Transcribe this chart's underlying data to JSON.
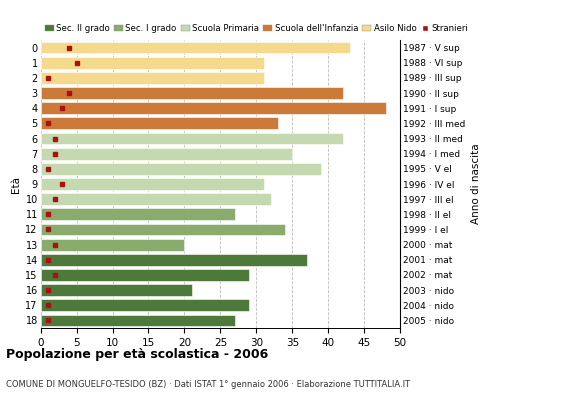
{
  "ages": [
    18,
    17,
    16,
    15,
    14,
    13,
    12,
    11,
    10,
    9,
    8,
    7,
    6,
    5,
    4,
    3,
    2,
    1,
    0
  ],
  "bar_values": [
    27,
    29,
    21,
    29,
    37,
    20,
    34,
    27,
    32,
    31,
    39,
    35,
    42,
    33,
    48,
    42,
    31,
    31,
    43
  ],
  "stranieri_values": [
    1,
    1,
    1,
    2,
    1,
    2,
    1,
    1,
    2,
    3,
    1,
    2,
    2,
    1,
    3,
    4,
    1,
    5,
    4
  ],
  "bar_colors": [
    "#4d7a3a",
    "#4d7a3a",
    "#4d7a3a",
    "#4d7a3a",
    "#4d7a3a",
    "#8aab6e",
    "#8aab6e",
    "#8aab6e",
    "#c5d9b0",
    "#c5d9b0",
    "#c5d9b0",
    "#c5d9b0",
    "#c5d9b0",
    "#cc7a3a",
    "#cc7a3a",
    "#cc7a3a",
    "#f5d98c",
    "#f5d98c",
    "#f5d98c"
  ],
  "right_labels": [
    "1987 · V sup",
    "1988 · VI sup",
    "1989 · III sup",
    "1990 · II sup",
    "1991 · I sup",
    "1992 · III med",
    "1993 · II med",
    "1994 · I med",
    "1995 · V el",
    "1996 · IV el",
    "1997 · III el",
    "1998 · II el",
    "1999 · I el",
    "2000 · mat",
    "2001 · mat",
    "2002 · mat",
    "2003 · nido",
    "2004 · nido",
    "2005 · nido"
  ],
  "legend_labels": [
    "Sec. II grado",
    "Sec. I grado",
    "Scuola Primaria",
    "Scuola dell'Infanzia",
    "Asilo Nido",
    "Stranieri"
  ],
  "legend_colors": [
    "#4d7a3a",
    "#8aab6e",
    "#c5d9b0",
    "#cc7a3a",
    "#f5d98c",
    "#aa1111"
  ],
  "title_text": "Popolazione per età scolastica - 2006",
  "footnote": "COMUNE DI MONGUELFO-TESIDO (BZ) · Dati ISTAT 1° gennaio 2006 · Elaborazione TUTTITALIA.IT",
  "xlim": [
    0,
    50
  ],
  "stranieri_color": "#aa1111",
  "background_color": "#ffffff",
  "ylabel_text": "Età",
  "ylabel2_text": "Anno di nascita"
}
